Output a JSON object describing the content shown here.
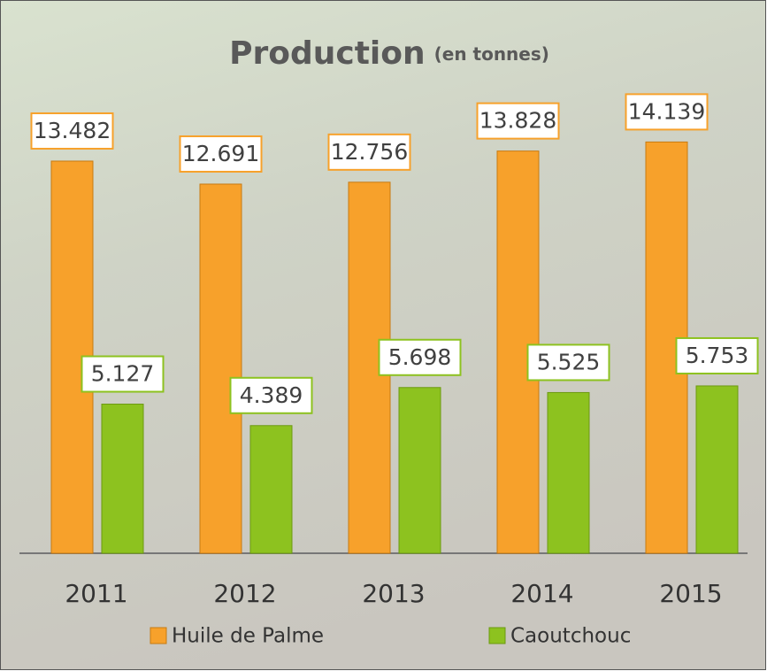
{
  "chart_data": {
    "type": "bar",
    "title": "Production",
    "subtitle": "(en tonnes)",
    "categories": [
      "2011",
      "2012",
      "2013",
      "2014",
      "2015"
    ],
    "series": [
      {
        "name": "Huile de Palme",
        "color": "#f7a12b",
        "values": [
          13.482,
          12.691,
          12.756,
          13.828,
          14.139
        ]
      },
      {
        "name": "Caoutchouc",
        "color": "#8dc21f",
        "values": [
          5.127,
          4.389,
          5.698,
          5.525,
          5.753
        ]
      }
    ]
  }
}
